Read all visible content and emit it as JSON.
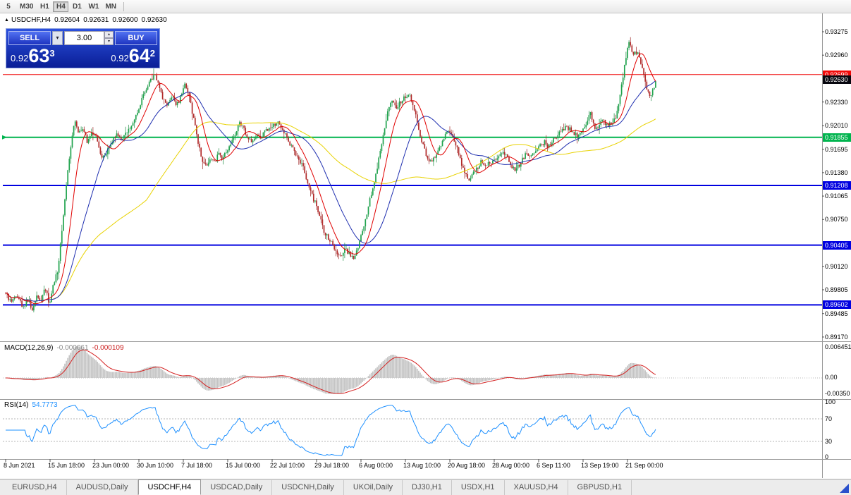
{
  "toolbar": {
    "timeframes": [
      "5",
      "M30",
      "H1",
      "H4",
      "D1",
      "W1",
      "MN"
    ],
    "active": "H4"
  },
  "chart_header": {
    "symbol": "USDCHF,H4",
    "open": "0.92604",
    "high": "0.92631",
    "low": "0.92600",
    "close": "0.92630"
  },
  "trade_widget": {
    "sell_label": "SELL",
    "buy_label": "BUY",
    "volume": "3.00",
    "sell_price": {
      "prefix": "0.92",
      "big": "63",
      "sup": "3"
    },
    "buy_price": {
      "prefix": "0.92",
      "big": "64",
      "sup": "2"
    }
  },
  "y_axis": {
    "ticks": [
      "0.93275",
      "0.92960",
      "0.92330",
      "0.92010",
      "0.91695",
      "0.91380",
      "0.91065",
      "0.90750",
      "0.90120",
      "0.89805",
      "0.89485",
      "0.89170"
    ]
  },
  "macd": {
    "label": "MACD(12,26,9)",
    "value1": "-0.000061",
    "value2": "-0.000109",
    "axis": [
      "0.006451",
      "0.00",
      "-0.00350"
    ]
  },
  "rsi": {
    "label": "RSI(14)",
    "value": "54.7773",
    "axis": [
      "100",
      "70",
      "30",
      "0"
    ]
  },
  "x_axis": {
    "labels": [
      "8 Jun 2021",
      "15 Jun 18:00",
      "23 Jun 00:00",
      "30 Jun 10:00",
      "7 Jul 18:00",
      "15 Jul 00:00",
      "22 Jul 10:00",
      "29 Jul 18:00",
      "6 Aug 00:00",
      "13 Aug 10:00",
      "20 Aug 18:00",
      "28 Aug 00:00",
      "6 Sep 11:00",
      "13 Sep 19:00",
      "21 Sep 00:00"
    ]
  },
  "tabs": {
    "items": [
      "EURUSD,H4",
      "AUDUSD,Daily",
      "USDCHF,H4",
      "USDCAD,Daily",
      "USDCNH,Daily",
      "UKOil,Daily",
      "DJ30,H1",
      "USDX,H1",
      "XAUUSD,H4",
      "GBPUSD,H1"
    ],
    "active_index": 2
  },
  "chart_data": {
    "type": "candlestick",
    "symbol": "USDCHF",
    "timeframe": "H4",
    "last_ohlc": {
      "open": 0.92604,
      "high": 0.92631,
      "low": 0.926,
      "close": 0.9263
    },
    "ylim": [
      0.89122,
      0.93512
    ],
    "y_ticks": [
      0.93275,
      0.9296,
      0.9233,
      0.9201,
      0.91695,
      0.9138,
      0.91065,
      0.9075,
      0.9012,
      0.89805,
      0.89485,
      0.8917
    ],
    "bid": {
      "price": 0.9263,
      "label": "0.92630",
      "bg": "#07070f"
    },
    "horizontal_lines": [
      {
        "price": 0.92699,
        "label": "0.92699",
        "color": "#f00808",
        "width": 1
      },
      {
        "price": 0.91855,
        "label": "0.91855",
        "color": "#00b44e",
        "width": 2
      },
      {
        "price": 0.91208,
        "label": "0.91208",
        "color": "#0000e0",
        "width": 2
      },
      {
        "price": 0.90405,
        "label": "0.90405",
        "color": "#0000e0",
        "width": 2
      },
      {
        "price": 0.89602,
        "label": "0.89602",
        "color": "#0000e0",
        "width": 2
      }
    ],
    "moving_averages": [
      {
        "period": 12,
        "color": "#e00000"
      },
      {
        "period": 32,
        "color": "#2030b0"
      },
      {
        "period": 96,
        "color": "#e8d200"
      }
    ],
    "indicators": [
      {
        "name": "MACD",
        "params": [
          12,
          26,
          9
        ],
        "values": [
          -6.1e-05,
          -0.000109
        ],
        "axis_values": [
          0.006451,
          0.0,
          -0.0035
        ]
      },
      {
        "name": "RSI",
        "params": [
          14
        ],
        "value": 54.7773,
        "levels": [
          100,
          70,
          30,
          0
        ]
      }
    ],
    "price_path": [
      [
        8,
        0.8976
      ],
      [
        16,
        0.8963
      ],
      [
        24,
        0.8972
      ],
      [
        32,
        0.8957
      ],
      [
        40,
        0.8968
      ],
      [
        46,
        0.8954
      ],
      [
        52,
        0.8975
      ],
      [
        58,
        0.8967
      ],
      [
        64,
        0.8985
      ],
      [
        70,
        0.896
      ],
      [
        76,
        0.8988
      ],
      [
        82,
        0.9008
      ],
      [
        88,
        0.906
      ],
      [
        94,
        0.9122
      ],
      [
        100,
        0.917
      ],
      [
        106,
        0.9208
      ],
      [
        112,
        0.919
      ],
      [
        118,
        0.9196
      ],
      [
        124,
        0.9179
      ],
      [
        130,
        0.9192
      ],
      [
        136,
        0.9185
      ],
      [
        142,
        0.9164
      ],
      [
        148,
        0.9157
      ],
      [
        154,
        0.917
      ],
      [
        160,
        0.918
      ],
      [
        166,
        0.919
      ],
      [
        172,
        0.9183
      ],
      [
        178,
        0.9191
      ],
      [
        184,
        0.9198
      ],
      [
        190,
        0.921
      ],
      [
        196,
        0.9222
      ],
      [
        202,
        0.9238
      ],
      [
        208,
        0.9252
      ],
      [
        214,
        0.9263
      ],
      [
        220,
        0.9272
      ],
      [
        226,
        0.925
      ],
      [
        232,
        0.9235
      ],
      [
        238,
        0.9227
      ],
      [
        244,
        0.9242
      ],
      [
        250,
        0.923
      ],
      [
        256,
        0.9238
      ],
      [
        262,
        0.9256
      ],
      [
        268,
        0.9241
      ],
      [
        274,
        0.9214
      ],
      [
        280,
        0.9185
      ],
      [
        286,
        0.9154
      ],
      [
        292,
        0.9147
      ],
      [
        298,
        0.9158
      ],
      [
        304,
        0.9152
      ],
      [
        310,
        0.9163
      ],
      [
        316,
        0.9156
      ],
      [
        322,
        0.9168
      ],
      [
        328,
        0.9178
      ],
      [
        334,
        0.919
      ],
      [
        340,
        0.9206
      ],
      [
        346,
        0.9196
      ],
      [
        352,
        0.9186
      ],
      [
        358,
        0.918
      ],
      [
        364,
        0.919
      ],
      [
        370,
        0.9186
      ],
      [
        376,
        0.9194
      ],
      [
        382,
        0.9198
      ],
      [
        388,
        0.9203
      ],
      [
        394,
        0.9206
      ],
      [
        400,
        0.9196
      ],
      [
        406,
        0.9186
      ],
      [
        412,
        0.9176
      ],
      [
        418,
        0.9165
      ],
      [
        424,
        0.9155
      ],
      [
        430,
        0.9146
      ],
      [
        436,
        0.9125
      ],
      [
        442,
        0.9108
      ],
      [
        448,
        0.9095
      ],
      [
        454,
        0.9078
      ],
      [
        460,
        0.9058
      ],
      [
        466,
        0.905
      ],
      [
        472,
        0.904
      ],
      [
        478,
        0.9032
      ],
      [
        484,
        0.9025
      ],
      [
        490,
        0.9035
      ],
      [
        496,
        0.9028
      ],
      [
        502,
        0.902
      ],
      [
        508,
        0.904
      ],
      [
        514,
        0.9058
      ],
      [
        520,
        0.9082
      ],
      [
        526,
        0.9108
      ],
      [
        532,
        0.9132
      ],
      [
        538,
        0.916
      ],
      [
        544,
        0.9192
      ],
      [
        550,
        0.922
      ],
      [
        556,
        0.9237
      ],
      [
        562,
        0.9226
      ],
      [
        568,
        0.9232
      ],
      [
        574,
        0.924
      ],
      [
        580,
        0.9245
      ],
      [
        586,
        0.9228
      ],
      [
        592,
        0.9204
      ],
      [
        598,
        0.9182
      ],
      [
        604,
        0.9162
      ],
      [
        610,
        0.9151
      ],
      [
        616,
        0.9158
      ],
      [
        622,
        0.9166
      ],
      [
        628,
        0.9184
      ],
      [
        634,
        0.9194
      ],
      [
        640,
        0.919
      ],
      [
        646,
        0.9177
      ],
      [
        652,
        0.9158
      ],
      [
        658,
        0.914
      ],
      [
        664,
        0.9127
      ],
      [
        670,
        0.9136
      ],
      [
        676,
        0.9144
      ],
      [
        682,
        0.9152
      ],
      [
        688,
        0.9147
      ],
      [
        694,
        0.915
      ],
      [
        700,
        0.9153
      ],
      [
        706,
        0.9159
      ],
      [
        712,
        0.9167
      ],
      [
        718,
        0.916
      ],
      [
        724,
        0.915
      ],
      [
        730,
        0.9139
      ],
      [
        736,
        0.9148
      ],
      [
        742,
        0.9158
      ],
      [
        748,
        0.9165
      ],
      [
        754,
        0.9159
      ],
      [
        760,
        0.9168
      ],
      [
        766,
        0.9174
      ],
      [
        772,
        0.918
      ],
      [
        778,
        0.9172
      ],
      [
        784,
        0.918
      ],
      [
        790,
        0.9188
      ],
      [
        796,
        0.9193
      ],
      [
        802,
        0.92
      ],
      [
        808,
        0.9196
      ],
      [
        814,
        0.919
      ],
      [
        820,
        0.9187
      ],
      [
        826,
        0.9198
      ],
      [
        832,
        0.9206
      ],
      [
        838,
        0.9218
      ],
      [
        844,
        0.9196
      ],
      [
        850,
        0.9203
      ],
      [
        856,
        0.9208
      ],
      [
        862,
        0.9199
      ],
      [
        868,
        0.9206
      ],
      [
        874,
        0.9213
      ],
      [
        880,
        0.9245
      ],
      [
        886,
        0.9283
      ],
      [
        892,
        0.9316
      ],
      [
        898,
        0.9297
      ],
      [
        904,
        0.9301
      ],
      [
        910,
        0.9283
      ],
      [
        916,
        0.9257
      ],
      [
        922,
        0.9238
      ],
      [
        927,
        0.9251
      ],
      [
        930,
        0.9263
      ]
    ]
  }
}
